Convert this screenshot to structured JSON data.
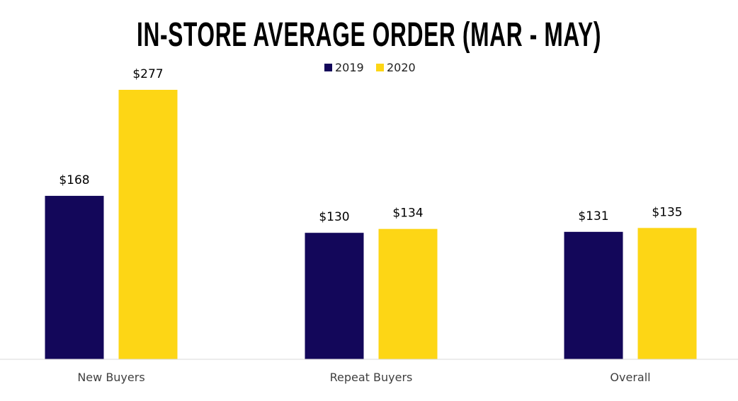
{
  "chart_data": {
    "type": "bar",
    "title": "IN-STORE AVERAGE ORDER (MAR - MAY)",
    "categories": [
      "New Buyers",
      "Repeat Buyers",
      "Overall"
    ],
    "series": [
      {
        "name": "2019",
        "color": "#13075A",
        "values": [
          168,
          130,
          131
        ],
        "labels": [
          "$168",
          "$130",
          "$131"
        ]
      },
      {
        "name": "2020",
        "color": "#FDD615",
        "values": [
          277,
          134,
          135
        ],
        "labels": [
          "$277",
          "$134",
          "$135"
        ]
      }
    ],
    "xlabel": "",
    "ylabel": "",
    "ylim": [
      0,
      300
    ],
    "grid": false,
    "legend": "top-center"
  }
}
